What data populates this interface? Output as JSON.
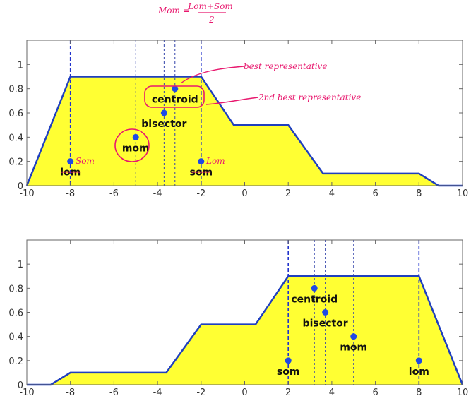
{
  "chart_data": [
    {
      "type": "area",
      "title": "",
      "xlabel": "",
      "ylabel": "",
      "xlim": [
        -10,
        10
      ],
      "ylim": [
        0,
        1.2
      ],
      "x_ticks": [
        "-10",
        "-8",
        "-6",
        "-4",
        "-2",
        "0",
        "2",
        "4",
        "6",
        "8",
        "10"
      ],
      "y_ticks": [
        "0",
        "0.2",
        "0.4",
        "0.6",
        "0.8",
        "1"
      ],
      "grid": false,
      "fill_color": "#ffff33",
      "line_color": "#1f3fbf",
      "marker_color": "#1f49e6",
      "curve": {
        "x": [
          -10,
          -8,
          -2,
          -0.5,
          2,
          3.6,
          8,
          8.9,
          10
        ],
        "y": [
          0,
          0.9,
          0.9,
          0.5,
          0.5,
          0.1,
          0.1,
          0,
          0
        ]
      },
      "points": [
        {
          "name": "lom",
          "label": "lom",
          "x": -8,
          "y": 0.2,
          "struck": true
        },
        {
          "name": "mom",
          "label": "mom",
          "x": -5,
          "y": 0.4
        },
        {
          "name": "bisector",
          "label": "bisector",
          "x": -3.7,
          "y": 0.6
        },
        {
          "name": "centroid",
          "label": "centroid",
          "x": -3.2,
          "y": 0.8
        },
        {
          "name": "som",
          "label": "som",
          "x": -2,
          "y": 0.2,
          "struck": true
        }
      ],
      "vlines": [
        -8,
        -5,
        -3.7,
        -3.2,
        -2
      ]
    },
    {
      "type": "area",
      "title": "",
      "xlabel": "",
      "ylabel": "",
      "xlim": [
        -10,
        10
      ],
      "ylim": [
        0,
        1.2
      ],
      "x_ticks": [
        "-10",
        "-8",
        "-6",
        "-4",
        "-2",
        "0",
        "2",
        "4",
        "6",
        "8",
        "10"
      ],
      "y_ticks": [
        "0",
        "0.2",
        "0.4",
        "0.6",
        "0.8",
        "1"
      ],
      "grid": false,
      "fill_color": "#ffff33",
      "line_color": "#1f3fbf",
      "marker_color": "#1f49e6",
      "curve": {
        "x": [
          -10,
          -8.9,
          -8,
          -3.6,
          -2,
          0.5,
          2,
          8,
          10
        ],
        "y": [
          0,
          0,
          0.1,
          0.1,
          0.5,
          0.5,
          0.9,
          0.9,
          0
        ]
      },
      "points": [
        {
          "name": "som",
          "label": "som",
          "x": 2,
          "y": 0.2
        },
        {
          "name": "centroid",
          "label": "centroid",
          "x": 3.2,
          "y": 0.8
        },
        {
          "name": "bisector",
          "label": "bisector",
          "x": 3.7,
          "y": 0.6
        },
        {
          "name": "mom",
          "label": "mom",
          "x": 5,
          "y": 0.4
        },
        {
          "name": "lom",
          "label": "lom",
          "x": 8,
          "y": 0.2
        }
      ],
      "vlines": [
        2,
        3.2,
        3.7,
        5,
        8
      ]
    }
  ],
  "annotations": {
    "color": "#e8186e",
    "formula": {
      "lhs": "Mom =",
      "numerator": "Lom+Som",
      "denominator": "2"
    },
    "best": "best representative",
    "second_best": "2nd best representative",
    "som_note": "Som",
    "lom_note": "Lom"
  }
}
